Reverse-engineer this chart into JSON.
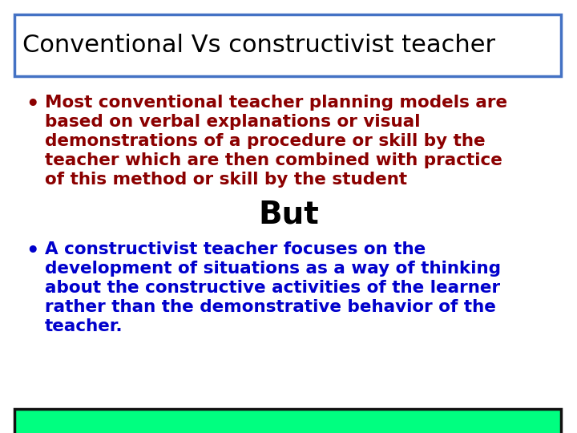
{
  "title": "Conventional Vs constructivist teacher",
  "title_color": "#000000",
  "title_bg": "#ffffff",
  "title_border_color": "#4472c4",
  "content_bg": "#00ff80",
  "content_border_color": "#111111",
  "bullet1_text": [
    "Most conventional teacher planning models are",
    "based on verbal explanations or visual",
    "demonstrations of a procedure or skill by the",
    "teacher which are then combined with practice",
    "of this method or skill by the student"
  ],
  "bullet1_color": "#8b0000",
  "middle_text": "But",
  "middle_color": "#000000",
  "bullet2_text": [
    "A constructivist teacher focuses on the",
    "development of situations as a way of thinking",
    "about the constructive activities of the learner",
    "rather than the demonstrative behavior of the",
    "teacher."
  ],
  "bullet2_color": "#0000cc",
  "font_size_title": 22,
  "font_size_bullet": 15.5,
  "font_size_but": 28
}
